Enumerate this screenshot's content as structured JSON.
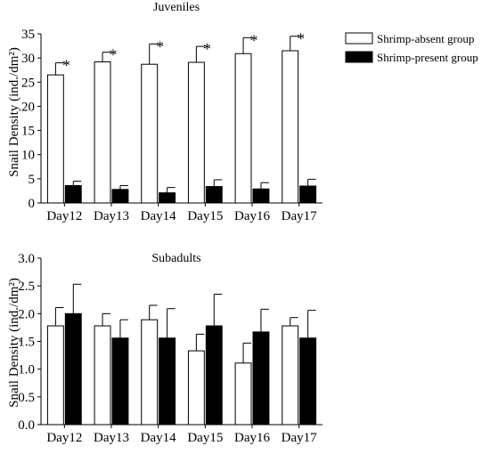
{
  "legend": {
    "position": "top-right",
    "items": [
      {
        "label": "Shrimp-absent group",
        "color": "#ffffff"
      },
      {
        "label": "Shrimp-present group",
        "color": "#000000"
      }
    ]
  },
  "chart_data": [
    {
      "type": "bar",
      "title": "Juveniles",
      "ylabel": "Snail Density (ind./dm²)",
      "categories": [
        "Day12",
        "Day13",
        "Day14",
        "Day15",
        "Day16",
        "Day17"
      ],
      "ylim": [
        0,
        35
      ],
      "yticks": [
        "0",
        "5",
        "10",
        "15",
        "20",
        "25",
        "30",
        "35"
      ],
      "series": [
        {
          "name": "Shrimp-absent group",
          "values": [
            26.5,
            29.2,
            28.7,
            29.1,
            30.9,
            31.5
          ],
          "errors": [
            2.5,
            2.0,
            4.2,
            3.3,
            3.3,
            3.0
          ]
        },
        {
          "name": "Shrimp-present group",
          "values": [
            3.6,
            2.8,
            2.1,
            3.4,
            2.9,
            3.5
          ],
          "errors": [
            0.9,
            0.8,
            1.1,
            1.4,
            1.3,
            1.4
          ]
        }
      ],
      "annotations": [
        "*",
        "*",
        "*",
        "*",
        "*",
        "*"
      ]
    },
    {
      "type": "bar",
      "title": "Subadults",
      "ylabel": "Snail Density (ind./dm²)",
      "categories": [
        "Day12",
        "Day13",
        "Day14",
        "Day15",
        "Day16",
        "Day17"
      ],
      "ylim": [
        0,
        3.0
      ],
      "yticks": [
        "0.0",
        "0.5",
        "1.0",
        "1.5",
        "2.0",
        "2.5",
        "3.0"
      ],
      "series": [
        {
          "name": "Shrimp-absent group",
          "values": [
            1.78,
            1.78,
            1.89,
            1.33,
            1.11,
            1.78
          ],
          "errors": [
            0.33,
            0.22,
            0.26,
            0.3,
            0.36,
            0.15
          ]
        },
        {
          "name": "Shrimp-present group",
          "values": [
            2.0,
            1.56,
            1.56,
            1.78,
            1.67,
            1.56
          ],
          "errors": [
            0.53,
            0.33,
            0.53,
            0.57,
            0.41,
            0.5
          ]
        }
      ],
      "annotations": []
    }
  ]
}
